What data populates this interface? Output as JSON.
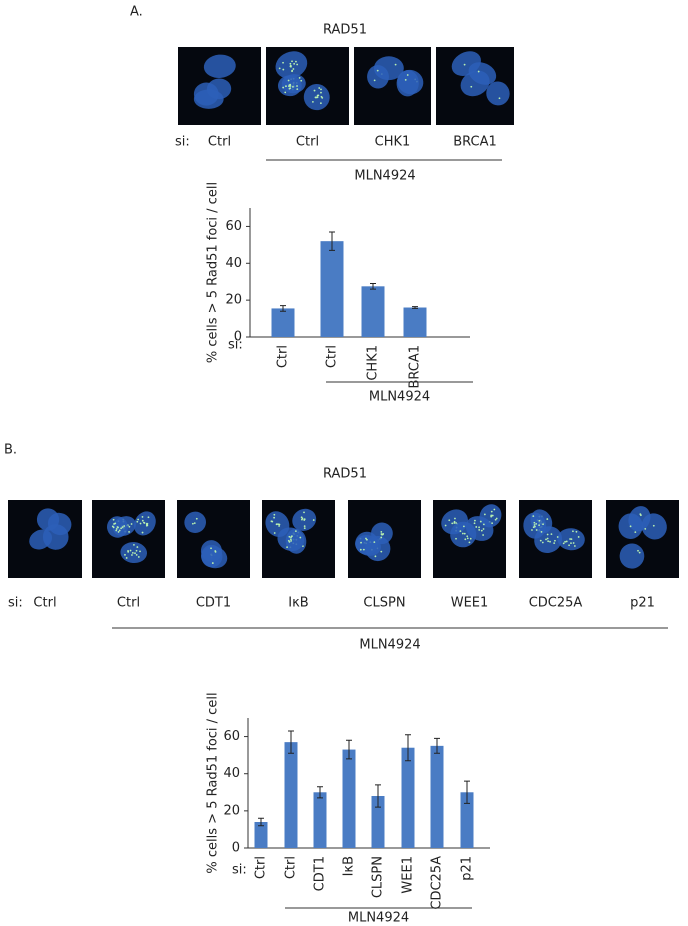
{
  "panel_a": {
    "label": "A.",
    "stain": "RAD51",
    "si_label": "si:",
    "images": [
      "Ctrl",
      "Ctrl",
      "CHK1",
      "BRCA1"
    ],
    "treatment": "MLN4924"
  },
  "panel_b": {
    "label": "B.",
    "stain": "RAD51",
    "si_label": "si:",
    "images": [
      "Ctrl",
      "Ctrl",
      "CDT1",
      "IκB",
      "CLSPN",
      "WEE1",
      "CDC25A",
      "p21"
    ],
    "treatment": "MLN4924"
  },
  "chart_data": [
    {
      "type": "bar",
      "y_label": "% cells > 5 Rad51 foci / cell",
      "si_label": "si:",
      "group_label": "MLN4924",
      "categories": [
        "Ctrl",
        "Ctrl",
        "CHK1",
        "BRCA1"
      ],
      "series": [
        {
          "color": "#4a7cc4",
          "values": [
            15.5,
            52,
            27.5,
            16
          ],
          "errors": [
            1.5,
            5,
            1.5,
            0.5
          ]
        }
      ],
      "ylim": [
        0,
        70
      ],
      "yticks": [
        0,
        20,
        40,
        60
      ]
    },
    {
      "type": "bar",
      "y_label": "% cells > 5 Rad51 foci / cell",
      "si_label": "si:",
      "group_label": "MLN4924",
      "categories": [
        "Ctrl",
        "Ctrl",
        "CDT1",
        "IκB",
        "CLSPN",
        "WEE1",
        "CDC25A",
        "p21"
      ],
      "series": [
        {
          "color": "#4a7cc4",
          "values": [
            14,
            57,
            30,
            53,
            28,
            54,
            55,
            30
          ],
          "errors": [
            2,
            6,
            3,
            5,
            6,
            7,
            4,
            6
          ]
        }
      ],
      "ylim": [
        0,
        70
      ],
      "yticks": [
        0,
        20,
        40,
        60
      ]
    }
  ]
}
